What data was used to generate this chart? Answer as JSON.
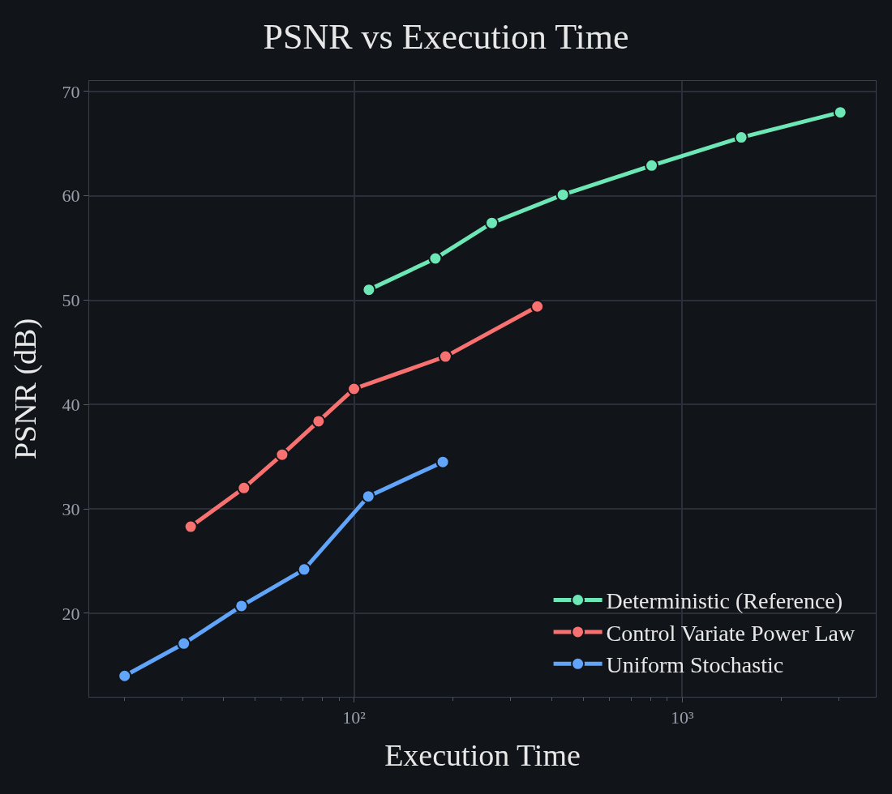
{
  "chart_data": {
    "type": "line",
    "title": "PSNR vs Execution Time",
    "xlabel": "Execution Time",
    "ylabel": "PSNR (dB)",
    "log": "x",
    "xlim": [
      15.6,
      3890
    ],
    "ylim": [
      12,
      71
    ],
    "xticks": [
      {
        "value": 20,
        "label": null
      },
      {
        "value": 30,
        "label": null
      },
      {
        "value": 40,
        "label": null
      },
      {
        "value": 50,
        "label": null
      },
      {
        "value": 60,
        "label": null
      },
      {
        "value": 70,
        "label": null
      },
      {
        "value": 80,
        "label": null
      },
      {
        "value": 90,
        "label": null
      },
      {
        "value": 100,
        "label": "10²"
      },
      {
        "value": 200,
        "label": null
      },
      {
        "value": 300,
        "label": null
      },
      {
        "value": 400,
        "label": null
      },
      {
        "value": 500,
        "label": null
      },
      {
        "value": 600,
        "label": null
      },
      {
        "value": 700,
        "label": null
      },
      {
        "value": 800,
        "label": null
      },
      {
        "value": 900,
        "label": null
      },
      {
        "value": 1000,
        "label": "10³"
      },
      {
        "value": 2000,
        "label": null
      },
      {
        "value": 3000,
        "label": null
      }
    ],
    "yticks": [
      20,
      30,
      40,
      50,
      60,
      70
    ],
    "grid": true,
    "legend": "bottom right",
    "marker": "circle",
    "line_style": "solid",
    "series": [
      {
        "name": "Deterministic (Reference)",
        "color": "#6ee7b7",
        "x": [
          111,
          177,
          263,
          433,
          807,
          1514,
          3033
        ],
        "values": [
          51.0,
          54.0,
          57.4,
          60.1,
          62.9,
          65.6,
          68.0
        ]
      },
      {
        "name": "Control Variate Power Law",
        "color": "#f87171",
        "x": [
          31.8,
          46.2,
          60.4,
          78.0,
          100,
          190,
          362
        ],
        "values": [
          28.3,
          32.0,
          35.2,
          38.4,
          41.5,
          44.6,
          49.4
        ]
      },
      {
        "name": "Uniform Stochastic",
        "color": "#60a5fa",
        "x": [
          20.0,
          30.3,
          45.4,
          70.5,
          110.6,
          186.5
        ],
        "values": [
          14.0,
          17.1,
          20.7,
          24.2,
          31.2,
          34.5
        ]
      }
    ]
  }
}
